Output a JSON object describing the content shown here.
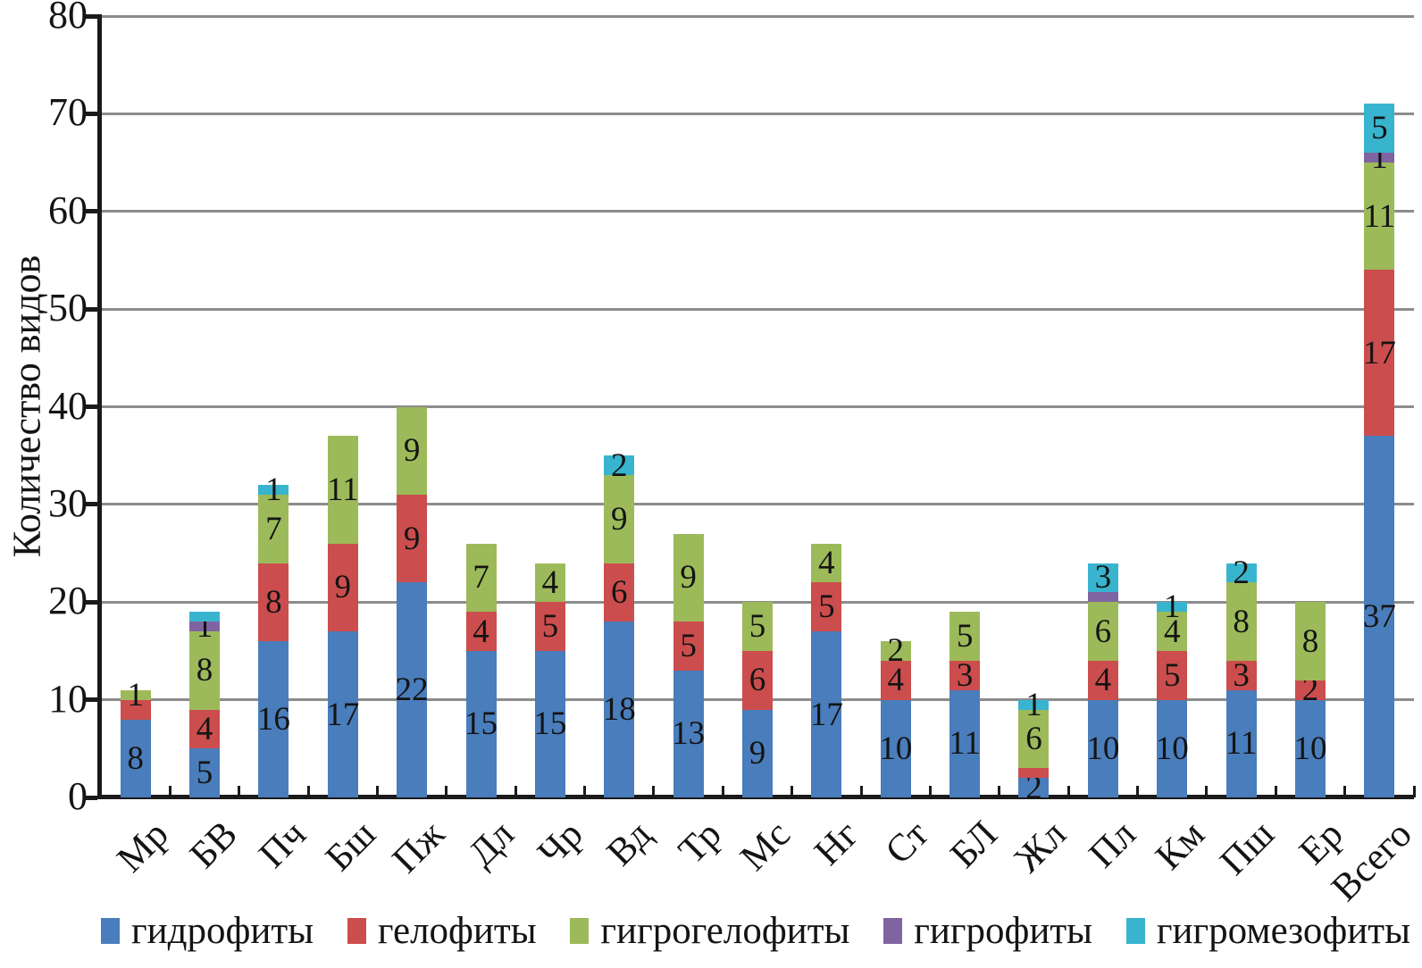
{
  "chart_data": {
    "type": "bar",
    "stacked": true,
    "title": "",
    "xlabel": "",
    "ylabel": "Количество видов",
    "ylim": [
      0,
      80
    ],
    "yticks": [
      0,
      10,
      20,
      30,
      40,
      50,
      60,
      70,
      80
    ],
    "grid": "horizontal",
    "legend_position": "bottom",
    "categories": [
      "Мр",
      "БВ",
      "Пч",
      "Бш",
      "Пж",
      "Дл",
      "Чр",
      "Вд",
      "Тр",
      "Мс",
      "Нг",
      "Ст",
      "БЛ",
      "Жл",
      "Пл",
      "Км",
      "Пш",
      "Ер",
      "Всего"
    ],
    "series": [
      {
        "name": "гидрофиты",
        "color": "#4a7dbb",
        "values": [
          8,
          5,
          16,
          17,
          22,
          15,
          15,
          18,
          13,
          9,
          17,
          10,
          11,
          2,
          10,
          10,
          11,
          10,
          37
        ],
        "labels": [
          "8",
          "5",
          "16",
          "17",
          "22",
          "15",
          "15",
          "18",
          "13",
          "9",
          "17",
          "10",
          "11",
          "2",
          "10",
          "10",
          "11",
          "10",
          "37"
        ]
      },
      {
        "name": "гелофиты",
        "color": "#cc4d4d",
        "values": [
          2,
          4,
          8,
          9,
          9,
          4,
          5,
          6,
          5,
          6,
          5,
          4,
          3,
          1,
          4,
          5,
          3,
          2,
          17
        ],
        "labels": [
          "",
          "4",
          "8",
          "9",
          "9",
          "4",
          "5",
          "6",
          "5",
          "6",
          "5",
          "4",
          "3",
          "",
          "4",
          "5",
          "3",
          "2",
          "17"
        ]
      },
      {
        "name": "гигрогелофиты",
        "color": "#9cba59",
        "values": [
          1,
          8,
          7,
          11,
          9,
          7,
          4,
          9,
          9,
          5,
          4,
          2,
          5,
          6,
          6,
          4,
          8,
          8,
          11
        ],
        "labels": [
          "1",
          "8",
          "7",
          "11",
          "9",
          "7",
          "4",
          "9",
          "9",
          "5",
          "4",
          "2",
          "5",
          "6",
          "6",
          "4",
          "8",
          "8",
          "11"
        ]
      },
      {
        "name": "гигрофиты",
        "color": "#8064a2",
        "values": [
          0,
          1,
          0,
          0,
          0,
          0,
          0,
          0,
          0,
          0,
          0,
          0,
          0,
          0,
          1,
          0,
          0,
          0,
          1
        ],
        "labels": [
          "",
          "1",
          "",
          "",
          "",
          "",
          "",
          "",
          "",
          "",
          "",
          "",
          "",
          "",
          "",
          "",
          "",
          "",
          "1"
        ]
      },
      {
        "name": "гигромезофиты",
        "color": "#38b4ce",
        "values": [
          0,
          1,
          1,
          0,
          0,
          0,
          0,
          2,
          0,
          0,
          0,
          0,
          0,
          1,
          3,
          1,
          2,
          0,
          5
        ],
        "labels": [
          "",
          "",
          "1",
          "",
          "",
          "",
          "",
          "2",
          "",
          "",
          "",
          "",
          "",
          "1",
          "3",
          "1",
          "2",
          "",
          "5"
        ]
      }
    ]
  }
}
